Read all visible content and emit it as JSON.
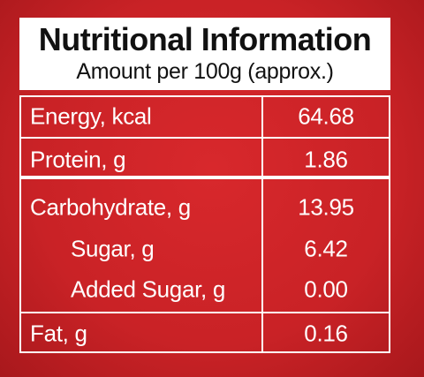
{
  "header": {
    "title": "Nutritional Information",
    "subtitle": "Amount per 100g (approx.)"
  },
  "table": {
    "rows": [
      [
        "Energy, kcal",
        "64.68"
      ],
      [
        "Protein, g",
        "1.86"
      ],
      [
        "Carbohydrate, g",
        "13.95"
      ],
      [
        "Sugar, g",
        "6.42"
      ],
      [
        "Added Sugar, g",
        "0.00"
      ],
      [
        "Fat, g",
        "0.16"
      ]
    ]
  }
}
